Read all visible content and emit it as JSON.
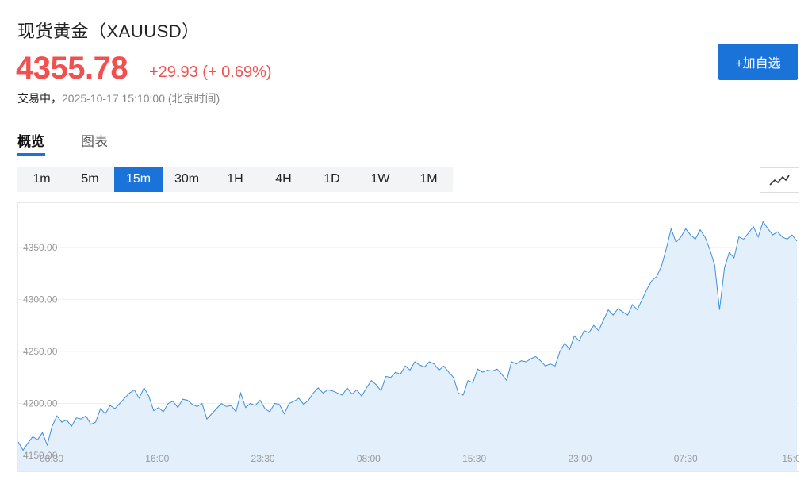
{
  "header": {
    "title": "现货黄金（XAUUSD）",
    "price": "4355.78",
    "change": "+29.93 (+ 0.69%)",
    "status_label": "交易中，",
    "timestamp": "2025-10-17 15:10:00 (北京时间)",
    "watch_button": "+加自选"
  },
  "tabs": [
    {
      "label": "概览",
      "active": true
    },
    {
      "label": "图表",
      "active": false
    }
  ],
  "intervals": [
    "1m",
    "5m",
    "15m",
    "30m",
    "1H",
    "4H",
    "1D",
    "1W",
    "1M"
  ],
  "selected_interval": "15m",
  "colors": {
    "up": "#f0514f",
    "accent": "#1a73d9",
    "line": "#3d8fd8",
    "fill": "#e3f0fc"
  },
  "chart_data": {
    "type": "area",
    "ylim": [
      4150,
      4385
    ],
    "y_ticks": [
      "4150.00",
      "4200.00",
      "4250.00",
      "4300.00",
      "4350.00"
    ],
    "x_ticks": [
      "08:30",
      "16:00",
      "23:30",
      "08:00",
      "15:30",
      "23:00",
      "07:30",
      "15:0"
    ],
    "values": [
      4163,
      4155,
      4162,
      4168,
      4165,
      4172,
      4160,
      4178,
      4188,
      4182,
      4184,
      4178,
      4186,
      4185,
      4188,
      4180,
      4182,
      4195,
      4190,
      4198,
      4195,
      4200,
      4205,
      4210,
      4213,
      4205,
      4215,
      4207,
      4193,
      4196,
      4192,
      4200,
      4202,
      4196,
      4204,
      4203,
      4199,
      4197,
      4200,
      4185,
      4190,
      4195,
      4200,
      4197,
      4198,
      4192,
      4210,
      4196,
      4200,
      4198,
      4203,
      4195,
      4192,
      4200,
      4199,
      4190,
      4200,
      4202,
      4205,
      4199,
      4203,
      4210,
      4215,
      4210,
      4213,
      4212,
      4210,
      4208,
      4215,
      4209,
      4213,
      4207,
      4215,
      4222,
      4218,
      4212,
      4226,
      4225,
      4230,
      4228,
      4236,
      4232,
      4240,
      4237,
      4235,
      4240,
      4238,
      4232,
      4236,
      4230,
      4225,
      4210,
      4208,
      4222,
      4220,
      4233,
      4230,
      4232,
      4231,
      4233,
      4228,
      4222,
      4240,
      4238,
      4241,
      4240,
      4243,
      4245,
      4241,
      4236,
      4238,
      4236,
      4250,
      4258,
      4252,
      4265,
      4260,
      4270,
      4268,
      4275,
      4270,
      4280,
      4290,
      4285,
      4291,
      4288,
      4285,
      4295,
      4290,
      4300,
      4310,
      4318,
      4322,
      4332,
      4349,
      4368,
      4355,
      4360,
      4368,
      4362,
      4358,
      4367,
      4360,
      4348,
      4333,
      4290,
      4330,
      4345,
      4340,
      4360,
      4358,
      4364,
      4370,
      4360,
      4375,
      4368,
      4362,
      4365,
      4360,
      4358,
      4362,
      4356
    ]
  }
}
